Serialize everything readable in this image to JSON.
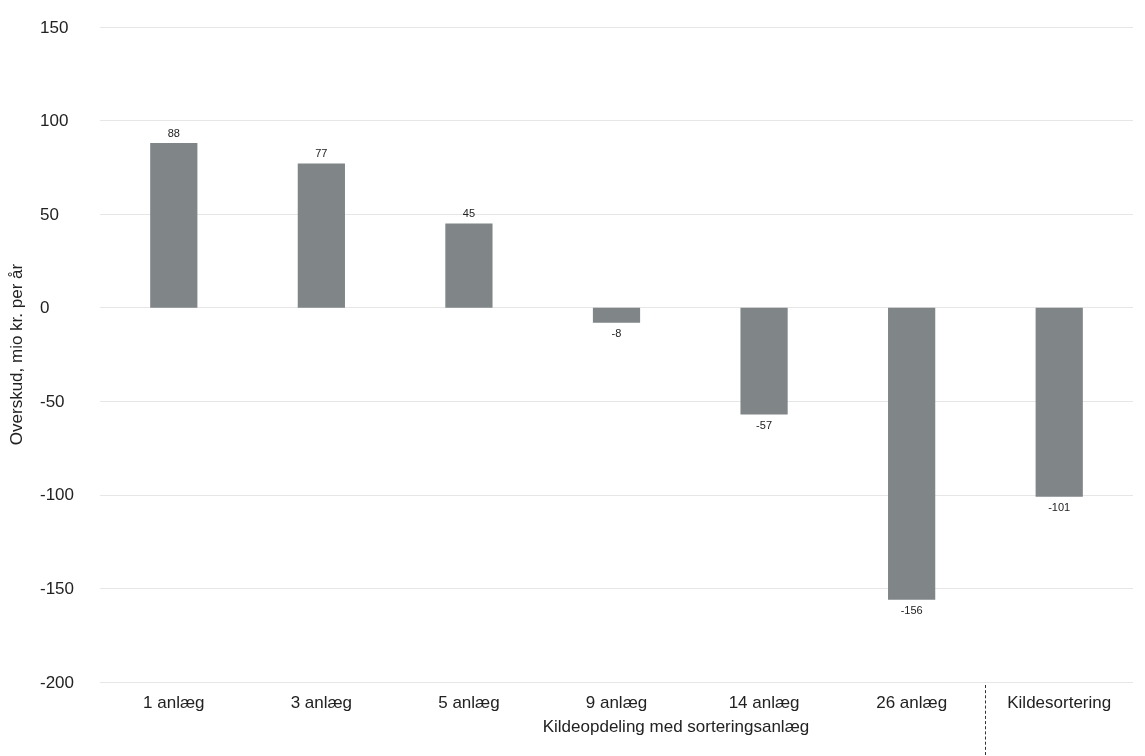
{
  "chart_data": {
    "type": "bar",
    "xlabel": "Kildeopdeling med sorteringsanlæg",
    "ylabel": "Overskud, mio kr. per år",
    "categories": [
      "1 anlæg",
      "3 anlæg",
      "5 anlæg",
      "9 anlæg",
      "14 anlæg",
      "26 anlæg",
      "Kildesortering"
    ],
    "values": [
      88,
      77,
      45,
      -8,
      -57,
      -156,
      -101
    ],
    "color": "#808587",
    "ylim": [
      -200,
      150
    ],
    "yticks": [
      -200,
      -150,
      -100,
      -50,
      0,
      50,
      100,
      150
    ],
    "grid": "y",
    "data_labels": true
  }
}
